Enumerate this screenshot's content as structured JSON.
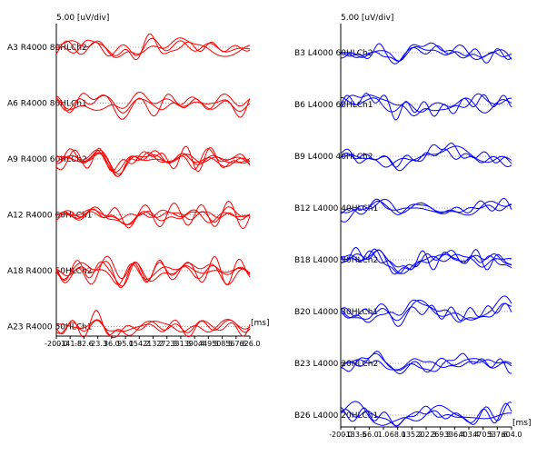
{
  "chart_data": [
    {
      "type": "line",
      "panel": "left",
      "scale_label": "5.00 [uV/div]",
      "unit_label": "[ms]",
      "color": "#ff0000",
      "x_tick_labels": [
        "-200.0",
        "-141.8",
        "-82.6",
        "-23.3",
        "36.0",
        "95.0",
        "154.2",
        "213.2",
        "272.3",
        "331.3",
        "390.4",
        "449.5",
        "508.5",
        "567.6",
        "626.0"
      ],
      "xlim": [
        -200,
        626
      ],
      "groups": [
        {
          "label": "A3 R4000 80HLCh2",
          "traces": 3
        },
        {
          "label": "A6 R4000 80HLCh1",
          "traces": 3
        },
        {
          "label": "A9 R4000 60HLCh2",
          "traces": 5
        },
        {
          "label": "A12 R4000 60HLCh1",
          "traces": 4
        },
        {
          "label": "A18 R4000 50HLCh2",
          "traces": 4
        },
        {
          "label": "A23 R4000 50HLCh1",
          "traces": 3
        }
      ]
    },
    {
      "type": "line",
      "panel": "right",
      "scale_label": "5.00 [uV/div]",
      "unit_label": "[ms]",
      "color": "#0000ff",
      "x_tick_labels": [
        "-200.0",
        "-133.5",
        "-66.0",
        "1.0",
        "68.0",
        "135.2",
        "202.3",
        "269.3",
        "336.4",
        "403.4",
        "470.5",
        "537.6",
        "604.0"
      ],
      "xlim": [
        -200,
        604
      ],
      "groups": [
        {
          "label": "B3 L4000 60HLCh2",
          "traces": 3
        },
        {
          "label": "B6 L4000 60HLCh1",
          "traces": 3
        },
        {
          "label": "B9 L4000 40HLCh2",
          "traces": 3
        },
        {
          "label": "B12 L4000 40HLCh1",
          "traces": 3
        },
        {
          "label": "B18 L4000 30HLCh2",
          "traces": 4
        },
        {
          "label": "B20 L4000 30HLCh1",
          "traces": 3
        },
        {
          "label": "B23 L4000 20HLCh2",
          "traces": 3
        },
        {
          "label": "B26 L4000 20HLCh1",
          "traces": 3
        }
      ]
    }
  ]
}
